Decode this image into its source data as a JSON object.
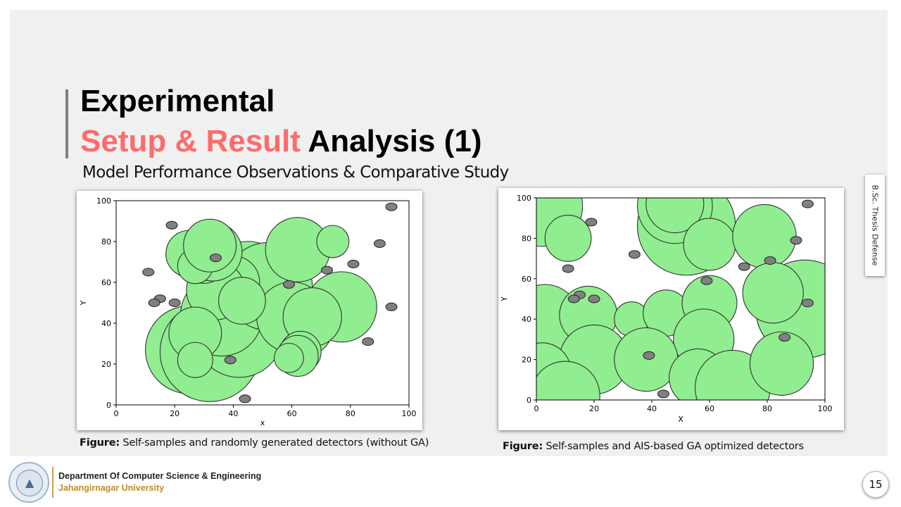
{
  "title": {
    "line1": "Experimental",
    "line2_accent": "Setup & Result",
    "line2_rest": " Analysis (1)"
  },
  "subtitle": "Model Performance Observations & Comparative Study",
  "side_tab": "B.Sc. Thesis Defense",
  "colors": {
    "accent": "#ff6b6b",
    "detector_fill": "#90ee90",
    "self_sample_fill": "#808080"
  },
  "captions": {
    "left_bold": "Figure:",
    "left_text": " Self-samples and randomly generated detectors (without GA)",
    "right_bold": "Figure:",
    "right_text": " Self-samples and AIS-based GA optimized detectors"
  },
  "footer": {
    "department": "Department Of Computer Science & Engineering",
    "university": "Jahangirnagar University",
    "page_number": "15"
  },
  "chart_data": [
    {
      "type": "scatter",
      "title": "",
      "xlabel": "x",
      "ylabel": "Y",
      "xlim": [
        0,
        100
      ],
      "ylim": [
        0,
        100
      ],
      "xticks": [
        0,
        20,
        40,
        60,
        80,
        100
      ],
      "yticks": [
        0,
        20,
        40,
        60,
        80,
        100
      ],
      "detectors": [
        {
          "x": 25,
          "y": 27,
          "r": 15
        },
        {
          "x": 32,
          "y": 26,
          "r": 17
        },
        {
          "x": 42,
          "y": 35,
          "r": 15
        },
        {
          "x": 36,
          "y": 44,
          "r": 14
        },
        {
          "x": 45,
          "y": 60,
          "r": 14
        },
        {
          "x": 52,
          "y": 58,
          "r": 15
        },
        {
          "x": 40,
          "y": 60,
          "r": 9
        },
        {
          "x": 34,
          "y": 56,
          "r": 10
        },
        {
          "x": 30,
          "y": 71,
          "r": 8
        },
        {
          "x": 33,
          "y": 75,
          "r": 10
        },
        {
          "x": 25,
          "y": 74,
          "r": 8
        },
        {
          "x": 27,
          "y": 68,
          "r": 6
        },
        {
          "x": 32,
          "y": 78,
          "r": 9
        },
        {
          "x": 62,
          "y": 76,
          "r": 11
        },
        {
          "x": 77,
          "y": 48,
          "r": 12
        },
        {
          "x": 64,
          "y": 38,
          "r": 10
        },
        {
          "x": 60,
          "y": 43,
          "r": 12
        },
        {
          "x": 67,
          "y": 43,
          "r": 10
        },
        {
          "x": 63,
          "y": 26,
          "r": 7
        },
        {
          "x": 62,
          "y": 24,
          "r": 7
        },
        {
          "x": 59,
          "y": 23,
          "r": 5
        },
        {
          "x": 74,
          "y": 80,
          "r": 5.5
        },
        {
          "x": 43,
          "y": 51,
          "r": 8
        },
        {
          "x": 27,
          "y": 35,
          "r": 9
        },
        {
          "x": 27,
          "y": 22,
          "r": 6
        }
      ],
      "self_samples": [
        {
          "x": 19,
          "y": 88
        },
        {
          "x": 34,
          "y": 72
        },
        {
          "x": 11,
          "y": 65
        },
        {
          "x": 15,
          "y": 52
        },
        {
          "x": 13,
          "y": 50
        },
        {
          "x": 20,
          "y": 50
        },
        {
          "x": 59,
          "y": 59
        },
        {
          "x": 72,
          "y": 66
        },
        {
          "x": 81,
          "y": 69
        },
        {
          "x": 90,
          "y": 79
        },
        {
          "x": 94,
          "y": 97
        },
        {
          "x": 94,
          "y": 48
        },
        {
          "x": 86,
          "y": 31
        },
        {
          "x": 39,
          "y": 22
        },
        {
          "x": 44,
          "y": 3
        }
      ]
    },
    {
      "type": "scatter",
      "title": "",
      "xlabel": "X",
      "ylabel": "Y",
      "xlim": [
        0,
        100
      ],
      "ylim": [
        0,
        100
      ],
      "xticks": [
        0,
        20,
        40,
        60,
        80,
        100
      ],
      "yticks": [
        0,
        20,
        40,
        60,
        80,
        100
      ],
      "detectors": [
        {
          "x": 2,
          "y": 96,
          "r": 14
        },
        {
          "x": 11,
          "y": 80,
          "r": 8
        },
        {
          "x": 52,
          "y": 86,
          "r": 17
        },
        {
          "x": 48,
          "y": 96,
          "r": 13
        },
        {
          "x": 48,
          "y": 97,
          "r": 10
        },
        {
          "x": 60,
          "y": 77,
          "r": 9
        },
        {
          "x": 79,
          "y": 81,
          "r": 11
        },
        {
          "x": 3,
          "y": 40,
          "r": 12
        },
        {
          "x": 18,
          "y": 42,
          "r": 10
        },
        {
          "x": 33,
          "y": 40,
          "r": 6
        },
        {
          "x": 45,
          "y": 43,
          "r": 8
        },
        {
          "x": 60,
          "y": 48,
          "r": 9.5
        },
        {
          "x": 58,
          "y": 30,
          "r": 10.5
        },
        {
          "x": 93,
          "y": 45,
          "r": 17
        },
        {
          "x": 82,
          "y": 53,
          "r": 10.5
        },
        {
          "x": 20,
          "y": 20,
          "r": 12
        },
        {
          "x": 2,
          "y": 14,
          "r": 10
        },
        {
          "x": 38,
          "y": 20,
          "r": 11
        },
        {
          "x": 56,
          "y": 11,
          "r": 10
        },
        {
          "x": 68,
          "y": 6,
          "r": 13
        },
        {
          "x": 85,
          "y": 18,
          "r": 11
        },
        {
          "x": 10,
          "y": 2,
          "r": 12
        }
      ],
      "self_samples": [
        {
          "x": 19,
          "y": 88
        },
        {
          "x": 34,
          "y": 72
        },
        {
          "x": 11,
          "y": 65
        },
        {
          "x": 15,
          "y": 52
        },
        {
          "x": 13,
          "y": 50
        },
        {
          "x": 20,
          "y": 50
        },
        {
          "x": 59,
          "y": 59
        },
        {
          "x": 72,
          "y": 66
        },
        {
          "x": 81,
          "y": 69
        },
        {
          "x": 90,
          "y": 79
        },
        {
          "x": 94,
          "y": 97
        },
        {
          "x": 94,
          "y": 48
        },
        {
          "x": 86,
          "y": 31
        },
        {
          "x": 39,
          "y": 22
        },
        {
          "x": 44,
          "y": 3
        }
      ]
    }
  ]
}
